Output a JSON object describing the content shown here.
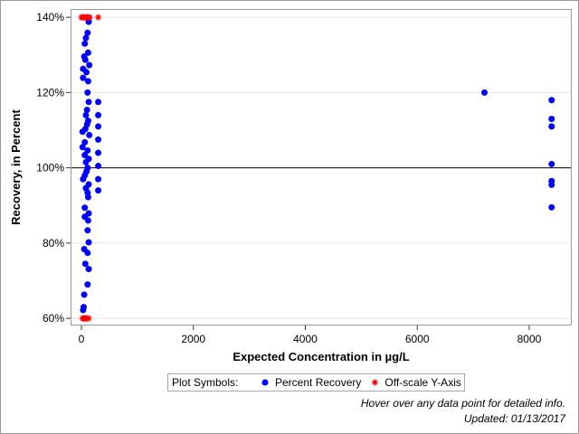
{
  "chart_data": {
    "type": "scatter",
    "x_label": "Expected Concentration in µg/L",
    "y_label": "Recovery, in Percent",
    "xlim": [
      -194,
      8760
    ],
    "xticks": [
      0,
      2000,
      4000,
      6000,
      8000
    ],
    "ylim": [
      58.1,
      142.2
    ],
    "yticks": [
      {
        "value": 60,
        "label": "60%"
      },
      {
        "value": 80,
        "label": "80%"
      },
      {
        "value": 100,
        "label": "100%"
      },
      {
        "value": 120,
        "label": "120%"
      },
      {
        "value": 140,
        "label": "140%"
      }
    ],
    "grid": true,
    "reference_line": 100,
    "legend_title": "Plot Symbols:",
    "series": [
      {
        "name": "Percent Recovery",
        "color": "#0000ff",
        "marker": "circle",
        "x": [
          300,
          300,
          300,
          300,
          300,
          300,
          300,
          300,
          7200,
          8400,
          8400,
          8400,
          8400,
          8400,
          8400,
          8400,
          130,
          110,
          80,
          60,
          120,
          50,
          70,
          140,
          30,
          90,
          30,
          120,
          110,
          130,
          100,
          80,
          120,
          100,
          70,
          20,
          140,
          60,
          20,
          110,
          60,
          130,
          80,
          110,
          90,
          60,
          30,
          130,
          80,
          110,
          120,
          60,
          130,
          60,
          120,
          110,
          130,
          50,
          110,
          70,
          130,
          110,
          50,
          40,
          30
        ],
        "values": [
          117.5,
          114,
          111,
          107.5,
          104,
          100.5,
          97,
          94,
          120,
          118,
          113,
          111,
          101,
          96.5,
          95.5,
          89.5,
          138.8,
          135.9,
          134.5,
          133,
          130.6,
          129.6,
          128.7,
          127.3,
          126.3,
          125.4,
          123.9,
          123,
          120,
          117.5,
          115.4,
          114,
          112.5,
          111.5,
          110.3,
          109.6,
          108.7,
          106.8,
          105.5,
          104.6,
          103.4,
          102.4,
          101.5,
          100,
          99,
          98,
          97,
          95.6,
          94.6,
          93.4,
          92.2,
          89.4,
          87.9,
          87,
          86,
          83.4,
          80.2,
          78.4,
          77.4,
          74.5,
          73.1,
          69,
          66.3,
          63,
          62.2
        ]
      },
      {
        "name": "Off-scale Y-Axis",
        "color": "#ff0000",
        "marker": "asterisk",
        "x": [
          0,
          20,
          40,
          60,
          80,
          100,
          120,
          150,
          300,
          20,
          40,
          60,
          80,
          100,
          130
        ],
        "values": [
          140,
          140,
          140,
          140,
          140,
          140,
          140,
          140,
          140,
          60,
          60,
          60,
          60,
          60,
          60
        ]
      }
    ],
    "notes": [
      "Hover over any data point for detailed info.",
      "Updated: 01/13/2017"
    ]
  }
}
